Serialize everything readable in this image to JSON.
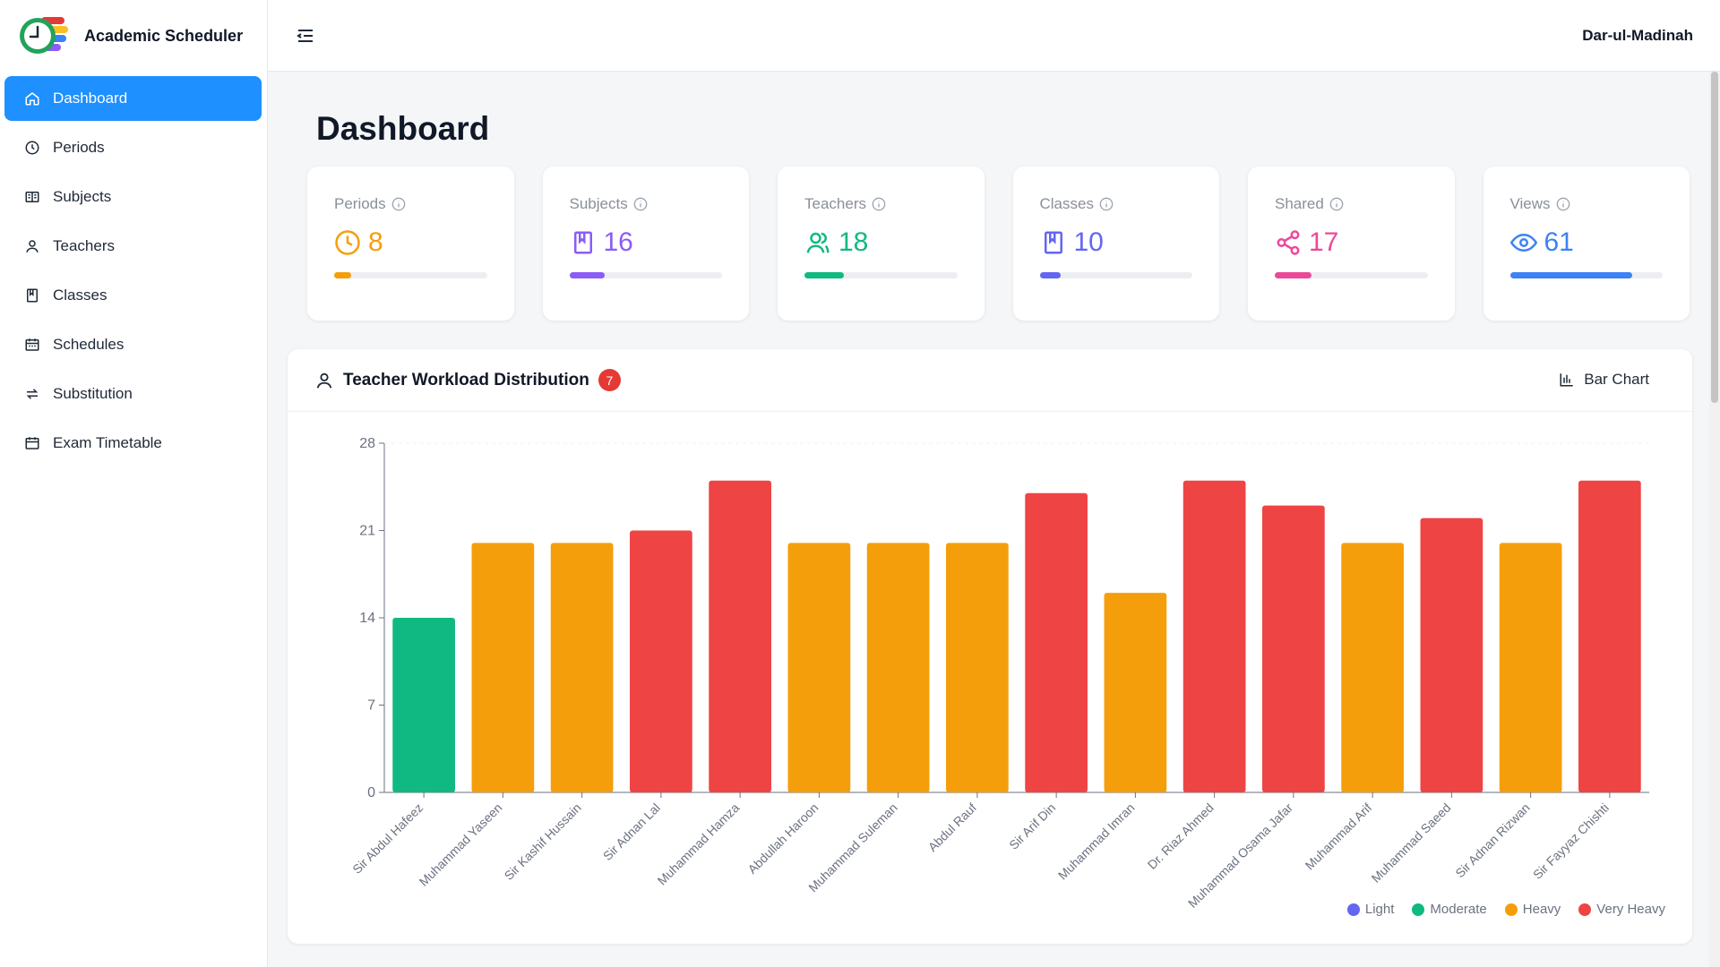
{
  "app": {
    "title": "Academic Scheduler",
    "org": "Dar-ul-Madinah"
  },
  "sidebar": {
    "items": [
      {
        "label": "Dashboard",
        "icon": "home-icon",
        "active": true
      },
      {
        "label": "Periods",
        "icon": "clock-icon"
      },
      {
        "label": "Subjects",
        "icon": "book-open-icon"
      },
      {
        "label": "Teachers",
        "icon": "user-icon"
      },
      {
        "label": "Classes",
        "icon": "bookmark-icon"
      },
      {
        "label": "Schedules",
        "icon": "calendar-grid-icon"
      },
      {
        "label": "Substitution",
        "icon": "swap-icon"
      },
      {
        "label": "Exam Timetable",
        "icon": "calendar-icon"
      }
    ]
  },
  "page": {
    "title": "Dashboard"
  },
  "stats": [
    {
      "label": "Periods",
      "value": "8",
      "color": "#f59e0b",
      "icon": "clock-icon",
      "progress": 0.11
    },
    {
      "label": "Subjects",
      "value": "16",
      "color": "#8b5cf6",
      "icon": "bookmark-icon",
      "progress": 0.23
    },
    {
      "label": "Teachers",
      "value": "18",
      "color": "#10b981",
      "icon": "users-icon",
      "progress": 0.26
    },
    {
      "label": "Classes",
      "value": "10",
      "color": "#6366f1",
      "icon": "bookmark-icon",
      "progress": 0.14
    },
    {
      "label": "Shared",
      "value": "17",
      "color": "#ec4899",
      "icon": "share-icon",
      "progress": 0.24
    },
    {
      "label": "Views",
      "value": "61",
      "color": "#3b82f6",
      "icon": "eye-icon",
      "progress": 0.8
    }
  ],
  "workload": {
    "title": "Teacher Workload Distribution",
    "badge": "7",
    "chart_type_label": "Bar Chart"
  },
  "chart_data": {
    "type": "bar",
    "categories": [
      "Sir Abdul Hafeez",
      "Muhammad Yaseen",
      "Sir Kashif Hussain",
      "Sir Adnan Lal",
      "Muhammad Hamza",
      "Abdullah Haroon",
      "Muhammad Suleman",
      "Abdul Rauf",
      "Sir Arif Din",
      "Muhammad Imran",
      "Dr. Riaz Ahmed",
      "Muhammad Osama Jafar",
      "Muhammad Arif",
      "Muhammad Saeed",
      "Sir Adnan Rizwan",
      "Sir Fayyaz Chishti"
    ],
    "values": [
      14,
      20,
      20,
      21,
      25,
      20,
      20,
      20,
      24,
      16,
      25,
      23,
      20,
      22,
      20,
      25
    ],
    "levels": [
      "Moderate",
      "Heavy",
      "Heavy",
      "Very Heavy",
      "Very Heavy",
      "Heavy",
      "Heavy",
      "Heavy",
      "Very Heavy",
      "Heavy",
      "Very Heavy",
      "Very Heavy",
      "Heavy",
      "Very Heavy",
      "Heavy",
      "Very Heavy"
    ],
    "yticks": [
      0,
      7,
      14,
      21,
      28
    ],
    "ylim": [
      0,
      28
    ],
    "legend": [
      {
        "label": "Light",
        "color": "#6366f1"
      },
      {
        "label": "Moderate",
        "color": "#10b981"
      },
      {
        "label": "Heavy",
        "color": "#f59e0b"
      },
      {
        "label": "Very Heavy",
        "color": "#ef4444"
      }
    ],
    "grid": false,
    "legend_position": "bottom-right"
  }
}
